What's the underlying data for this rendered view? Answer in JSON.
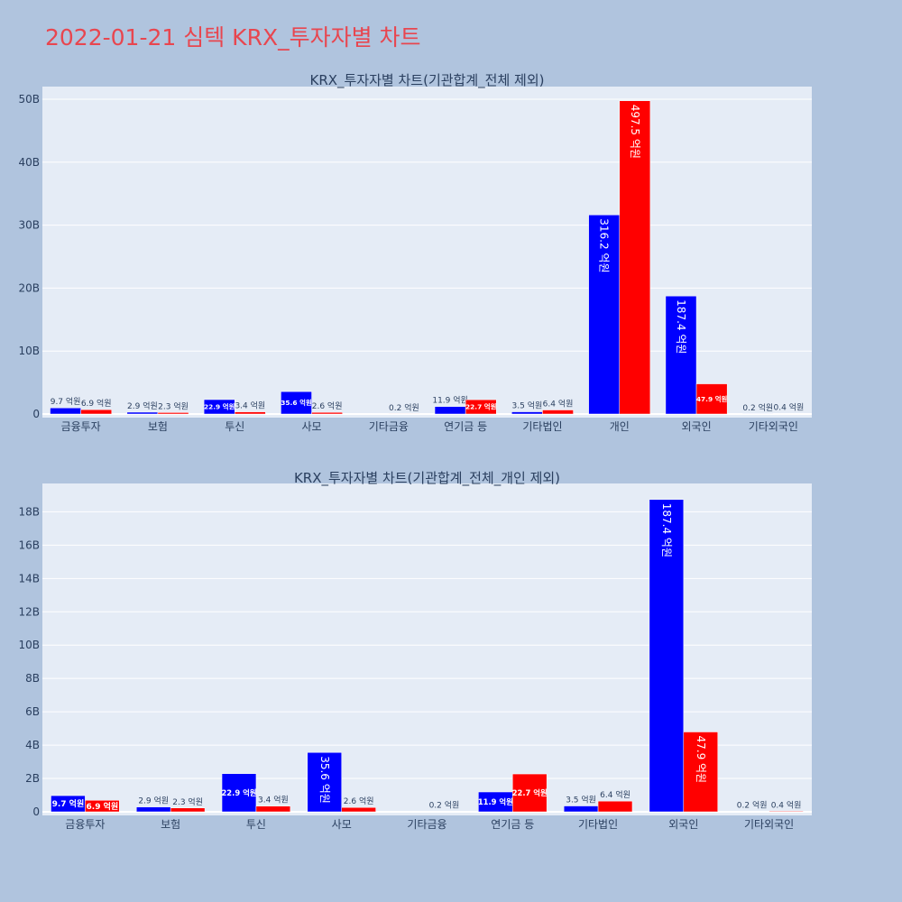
{
  "page": {
    "title": "2022-01-21 심텍 KRX_투자자별 차트"
  },
  "colors": {
    "background": "#b0c4de",
    "plot_background": "#e5ecf6",
    "title": "#e8464f",
    "series_buy": "#0000ff",
    "series_sell": "#ff0000",
    "text": "#2a3f5f"
  },
  "chart_data": [
    {
      "type": "bar",
      "title": "KRX_투자자별 차트(기관합계_전체 제외)",
      "categories": [
        "금융투자",
        "보험",
        "투신",
        "사모",
        "기타금융",
        "연기금 등",
        "기타법인",
        "개인",
        "외국인",
        "기타외국인"
      ],
      "series": [
        {
          "color": "#0000ff",
          "values": [
            0.97,
            0.29,
            2.29,
            3.56,
            0,
            1.19,
            0.35,
            31.62,
            18.74,
            0.02
          ],
          "labels": [
            "9.7 억원",
            "2.9 억원",
            "22.9 억원",
            "35.6 억원",
            "",
            "11.9 억원",
            "3.5 억원",
            "316.2 억원",
            "187.4 억원",
            "0.2 억원"
          ]
        },
        {
          "color": "#ff0000",
          "values": [
            0.69,
            0.23,
            0.34,
            0.26,
            0.02,
            2.27,
            0.64,
            49.75,
            4.79,
            0.04
          ],
          "labels": [
            "6.9 억원",
            "2.3 억원",
            "3.4 억원",
            "2.6 억원",
            "0.2 억원",
            "22.7 억원",
            "6.4 억원",
            "497.5 억원",
            "47.9 억원",
            "0.4 억원"
          ]
        }
      ],
      "ylim": [
        0,
        52
      ],
      "yticks": [
        0,
        10,
        20,
        30,
        40,
        50
      ],
      "ytick_labels": [
        "0",
        "10B",
        "20B",
        "30B",
        "40B",
        "50B"
      ],
      "grid": true,
      "legend": "none"
    },
    {
      "type": "bar",
      "title": "KRX_투자자별 차트(기관합계_전체_개인 제외)",
      "categories": [
        "금융투자",
        "보험",
        "투신",
        "사모",
        "기타금융",
        "연기금 등",
        "기타법인",
        "외국인",
        "기타외국인"
      ],
      "series": [
        {
          "color": "#0000ff",
          "values": [
            0.97,
            0.29,
            2.29,
            3.56,
            0,
            1.19,
            0.35,
            18.74,
            0.02
          ],
          "labels": [
            "9.7 억원",
            "2.9 억원",
            "22.9 억원",
            "35.6 억원",
            "",
            "11.9 억원",
            "3.5 억원",
            "187.4 억원",
            "0.2 억원"
          ]
        },
        {
          "color": "#ff0000",
          "values": [
            0.69,
            0.23,
            0.34,
            0.26,
            0.02,
            2.27,
            0.64,
            4.79,
            0.04
          ],
          "labels": [
            "6.9 억원",
            "2.3 억원",
            "3.4 억원",
            "2.6 억원",
            "0.2 억원",
            "22.7 억원",
            "6.4 억원",
            "47.9 억원",
            "0.4 억원"
          ]
        }
      ],
      "ylim": [
        0,
        19.7
      ],
      "yticks": [
        0,
        2,
        4,
        6,
        8,
        10,
        12,
        14,
        16,
        18
      ],
      "ytick_labels": [
        "0",
        "2B",
        "4B",
        "6B",
        "8B",
        "10B",
        "12B",
        "14B",
        "16B",
        "18B"
      ],
      "grid": true,
      "legend": "none"
    }
  ]
}
